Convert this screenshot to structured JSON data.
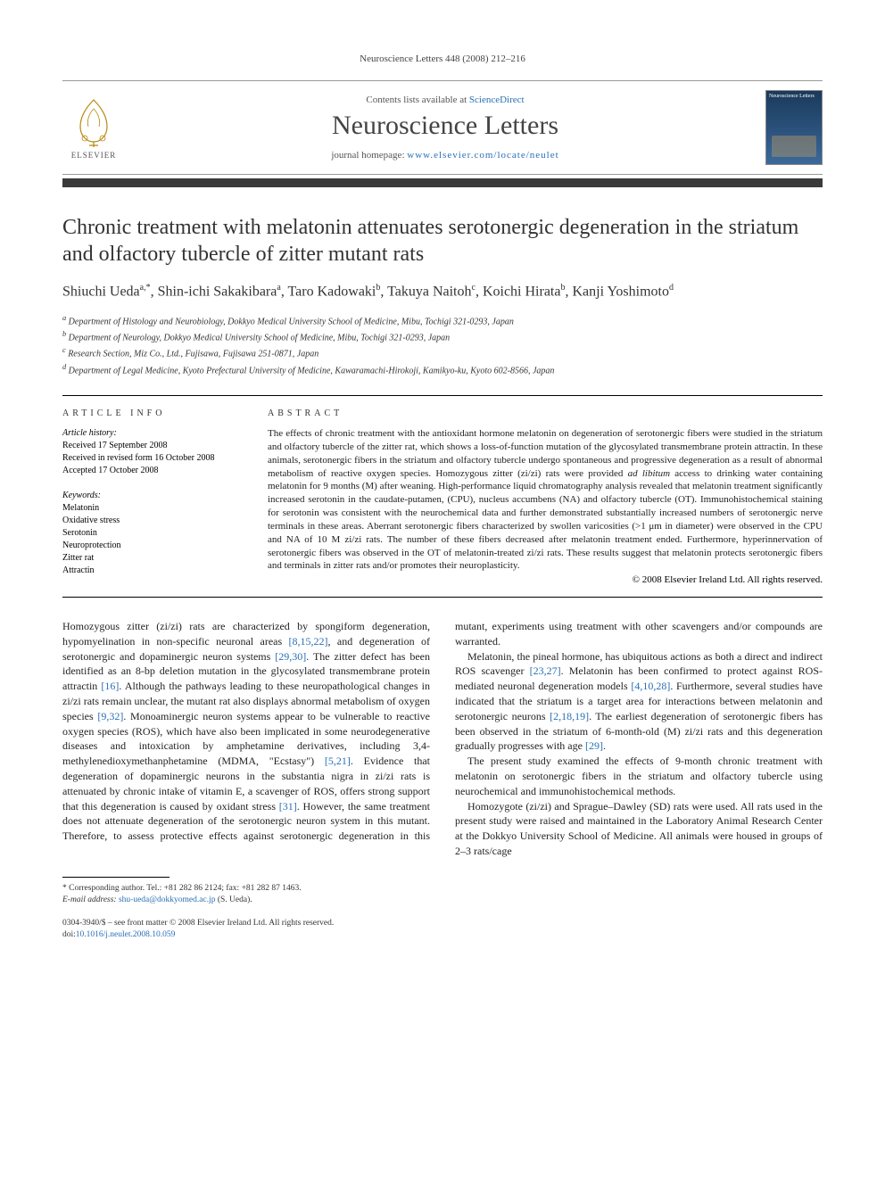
{
  "running_head": "Neuroscience Letters 448 (2008) 212–216",
  "masthead": {
    "contents_prefix": "Contents lists available at ",
    "contents_link": "ScienceDirect",
    "journal": "Neuroscience Letters",
    "homepage_prefix": "journal homepage: ",
    "homepage_url": "www.elsevier.com/locate/neulet",
    "publisher": "ELSEVIER",
    "cover_label": "Neuroscience Letters"
  },
  "title": "Chronic treatment with melatonin attenuates serotonergic degeneration in the striatum and olfactory tubercle of zitter mutant rats",
  "authors_html": "Shiuchi Ueda<sup>a,*</sup>, Shin-ichi Sakakibara<sup>a</sup>, Taro Kadowaki<sup>b</sup>, Takuya Naitoh<sup>c</sup>, Koichi Hirata<sup>b</sup>, Kanji Yoshimoto<sup>d</sup>",
  "affiliations": [
    "a Department of Histology and Neurobiology, Dokkyo Medical University School of Medicine, Mibu, Tochigi 321-0293, Japan",
    "b Department of Neurology, Dokkyo Medical University School of Medicine, Mibu, Tochigi 321-0293, Japan",
    "c Research Section, Miz Co., Ltd., Fujisawa, Fujisawa 251-0871, Japan",
    "d Department of Legal Medicine, Kyoto Prefectural University of Medicine, Kawaramachi-Hirokoji, Kamikyo-ku, Kyoto 602-8566, Japan"
  ],
  "article_info": {
    "head": "article info",
    "history_label": "Article history:",
    "received": "Received 17 September 2008",
    "revised": "Received in revised form 16 October 2008",
    "accepted": "Accepted 17 October 2008",
    "keywords_label": "Keywords:",
    "keywords": [
      "Melatonin",
      "Oxidative stress",
      "Serotonin",
      "Neuroprotection",
      "Zitter rat",
      "Attractin"
    ]
  },
  "abstract": {
    "head": "abstract",
    "text": "The effects of chronic treatment with the antioxidant hormone melatonin on degeneration of serotonergic fibers were studied in the striatum and olfactory tubercle of the zitter rat, which shows a loss-of-function mutation of the glycosylated transmembrane protein attractin. In these animals, serotonergic fibers in the striatum and olfactory tubercle undergo spontaneous and progressive degeneration as a result of abnormal metabolism of reactive oxygen species. Homozygous zitter (zi/zi) rats were provided ad libitum access to drinking water containing melatonin for 9 months (M) after weaning. High-performance liquid chromatography analysis revealed that melatonin treatment significantly increased serotonin in the caudate-putamen, (CPU), nucleus accumbens (NA) and olfactory tubercle (OT). Immunohistochemical staining for serotonin was consistent with the neurochemical data and further demonstrated substantially increased numbers of serotonergic nerve terminals in these areas. Aberrant serotonergic fibers characterized by swollen varicosities (>1 μm in diameter) were observed in the CPU and NA of 10 M zi/zi rats. The number of these fibers decreased after melatonin treatment ended. Furthermore, hyperinnervation of serotonergic fibers was observed in the OT of melatonin-treated zi/zi rats. These results suggest that melatonin protects serotonergic fibers and terminals in zitter rats and/or promotes their neuroplasticity.",
    "copyright": "© 2008 Elsevier Ireland Ltd. All rights reserved."
  },
  "body": {
    "p1_a": "Homozygous zitter (zi/zi) rats are characterized by spongiform degeneration, hypomyelination in non-specific neuronal areas ",
    "p1_ref1": "[8,15,22]",
    "p1_b": ", and degeneration of serotonergic and dopaminergic neuron systems ",
    "p1_ref2": "[29,30]",
    "p1_c": ". The zitter defect has been identified as an 8-bp deletion mutation in the glycosylated transmembrane protein attractin ",
    "p1_ref3": "[16]",
    "p1_d": ". Although the pathways leading to these neuropathological changes in zi/zi rats remain unclear, the mutant rat also displays abnormal metabolism of oxygen species ",
    "p1_ref4": "[9,32]",
    "p1_e": ". Monoaminergic neuron systems appear to be vulnerable to reactive oxygen species (ROS), which have also been implicated in some neurodegenerative diseases and intoxication by amphetamine derivatives, including 3,4-methylenedioxymethanphetamine (MDMA, \"Ecstasy\") ",
    "p1_ref5": "[5,21]",
    "p1_f": ". Evidence that degeneration of dopaminergic neurons in the substantia nigra in zi/zi rats is attenuated by chronic intake of vitamin E, a scavenger of ROS, offers strong support that this degeneration is caused by oxidant stress ",
    "p1_ref6": "[31]",
    "p1_g": ". However, the same treatment does not attenuate degeneration of the serotonergic neuron system in this mutant. Therefore, to assess protective effects against serotonergic degeneration in this mutant, experiments using treatment with other scavengers and/or compounds are warranted.",
    "p2_a": "Melatonin, the pineal hormone, has ubiquitous actions as both a direct and indirect ROS scavenger ",
    "p2_ref1": "[23,27]",
    "p2_b": ". Melatonin has been confirmed to protect against ROS-mediated neuronal degeneration models ",
    "p2_ref2": "[4,10,28]",
    "p2_c": ". Furthermore, several studies have indicated that the striatum is a target area for interactions between melatonin and serotonergic neurons ",
    "p2_ref3": "[2,18,19]",
    "p2_d": ". The earliest degeneration of serotonergic fibers has been observed in the striatum of 6-month-old (M) zi/zi rats and this degeneration gradually progresses with age ",
    "p2_ref4": "[29]",
    "p2_e": ".",
    "p3": "The present study examined the effects of 9-month chronic treatment with melatonin on serotonergic fibers in the striatum and olfactory tubercle using neurochemical and immunohistochemical methods.",
    "p4": "Homozygote (zi/zi) and Sprague–Dawley (SD) rats were used. All rats used in the present study were raised and maintained in the Laboratory Animal Research Center at the Dokkyo University School of Medicine. All animals were housed in groups of 2–3 rats/cage"
  },
  "footnotes": {
    "corr": "* Corresponding author. Tel.: +81 282 86 2124; fax: +81 282 87 1463.",
    "email_label": "E-mail address: ",
    "email": "shu-ueda@dokkyomed.ac.jp",
    "email_suffix": " (S. Ueda)."
  },
  "footer": {
    "issn": "0304-3940/$ – see front matter © 2008 Elsevier Ireland Ltd. All rights reserved.",
    "doi_label": "doi:",
    "doi": "10.1016/j.neulet.2008.10.059"
  },
  "colors": {
    "link": "#2a6fb5",
    "text": "#222",
    "bar": "#3a3a3a"
  }
}
